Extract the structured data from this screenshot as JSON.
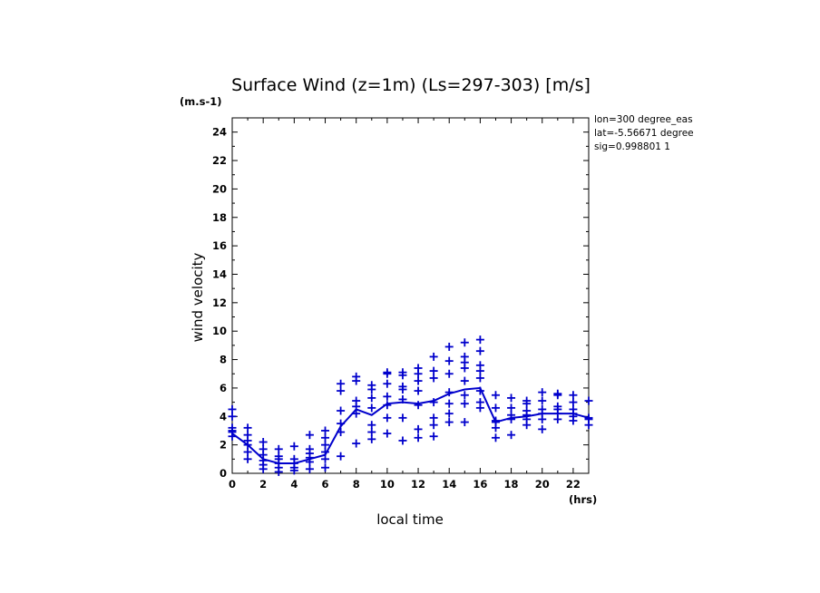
{
  "chart_data": {
    "type": "line",
    "title": "Surface Wind (z=1m) (Ls=297-303) [m/s]",
    "ylabel": "wind velocity",
    "yunit": "(m.s-1)",
    "xlabel": "local time",
    "xunit": "(hrs)",
    "xlim": [
      0,
      23
    ],
    "ylim": [
      0,
      25
    ],
    "xticks": [
      0,
      2,
      4,
      6,
      8,
      10,
      12,
      14,
      16,
      18,
      20,
      22
    ],
    "yticks": [
      0,
      2,
      4,
      6,
      8,
      10,
      12,
      14,
      16,
      18,
      20,
      22,
      24
    ],
    "annotations": [
      "lon=300 degree_eas",
      "lat=-5.56671 degree",
      "sig=0.998801 1"
    ],
    "mean_line": {
      "name": "mean",
      "x": [
        0,
        1,
        2,
        3,
        4,
        5,
        6,
        7,
        8,
        9,
        10,
        11,
        12,
        13,
        14,
        15,
        16,
        17,
        18,
        19,
        20,
        21,
        22,
        23
      ],
      "y": [
        2.8,
        2.0,
        1.0,
        0.7,
        0.7,
        1.0,
        1.3,
        3.3,
        4.5,
        4.1,
        4.9,
        5.0,
        4.9,
        5.1,
        5.6,
        5.9,
        6.0,
        3.6,
        3.9,
        4.0,
        4.2,
        4.2,
        4.2,
        3.9
      ]
    },
    "scatter": {
      "name": "samples",
      "points": [
        [
          0,
          2.6
        ],
        [
          0,
          3.0
        ],
        [
          0,
          3.2
        ],
        [
          0,
          4.0
        ],
        [
          0,
          4.5
        ],
        [
          0,
          2.9
        ],
        [
          1,
          1.0
        ],
        [
          1,
          1.5
        ],
        [
          1,
          2.0
        ],
        [
          1,
          2.3
        ],
        [
          1,
          2.7
        ],
        [
          1,
          3.2
        ],
        [
          2,
          0.3
        ],
        [
          2,
          0.6
        ],
        [
          2,
          0.9
        ],
        [
          2,
          1.3
        ],
        [
          2,
          1.7
        ],
        [
          2,
          2.2
        ],
        [
          3,
          0.1
        ],
        [
          3,
          0.4
        ],
        [
          3,
          0.7
        ],
        [
          3,
          1.0
        ],
        [
          3,
          1.2
        ],
        [
          3,
          1.7
        ],
        [
          4,
          0.2
        ],
        [
          4,
          0.4
        ],
        [
          4,
          0.7
        ],
        [
          4,
          1.0
        ],
        [
          4,
          1.9
        ],
        [
          5,
          0.3
        ],
        [
          5,
          0.8
        ],
        [
          5,
          1.1
        ],
        [
          5,
          1.4
        ],
        [
          5,
          1.7
        ],
        [
          5,
          2.7
        ],
        [
          6,
          0.4
        ],
        [
          6,
          1.0
        ],
        [
          6,
          1.5
        ],
        [
          6,
          2.0
        ],
        [
          6,
          2.5
        ],
        [
          6,
          3.0
        ],
        [
          7,
          1.2
        ],
        [
          7,
          2.9
        ],
        [
          7,
          3.5
        ],
        [
          7,
          4.4
        ],
        [
          7,
          5.8
        ],
        [
          7,
          6.3
        ],
        [
          8,
          2.1
        ],
        [
          8,
          4.2
        ],
        [
          8,
          4.7
        ],
        [
          8,
          5.1
        ],
        [
          8,
          6.5
        ],
        [
          8,
          6.8
        ],
        [
          9,
          2.4
        ],
        [
          9,
          2.9
        ],
        [
          9,
          3.4
        ],
        [
          9,
          4.6
        ],
        [
          9,
          5.3
        ],
        [
          9,
          5.9
        ],
        [
          9,
          6.2
        ],
        [
          10,
          2.8
        ],
        [
          10,
          3.9
        ],
        [
          10,
          4.8
        ],
        [
          10,
          5.4
        ],
        [
          10,
          6.3
        ],
        [
          10,
          7.0
        ],
        [
          10,
          7.1
        ],
        [
          11,
          2.3
        ],
        [
          11,
          3.9
        ],
        [
          11,
          5.2
        ],
        [
          11,
          5.9
        ],
        [
          11,
          6.1
        ],
        [
          11,
          6.9
        ],
        [
          11,
          7.1
        ],
        [
          12,
          2.5
        ],
        [
          12,
          3.1
        ],
        [
          12,
          4.8
        ],
        [
          12,
          5.8
        ],
        [
          12,
          6.5
        ],
        [
          12,
          7.0
        ],
        [
          12,
          7.4
        ],
        [
          13,
          2.6
        ],
        [
          13,
          3.4
        ],
        [
          13,
          3.9
        ],
        [
          13,
          5.0
        ],
        [
          13,
          6.7
        ],
        [
          13,
          7.2
        ],
        [
          13,
          8.2
        ],
        [
          14,
          3.6
        ],
        [
          14,
          4.2
        ],
        [
          14,
          4.9
        ],
        [
          14,
          5.7
        ],
        [
          14,
          7.0
        ],
        [
          14,
          7.9
        ],
        [
          14,
          8.9
        ],
        [
          15,
          3.6
        ],
        [
          15,
          4.9
        ],
        [
          15,
          5.5
        ],
        [
          15,
          6.5
        ],
        [
          15,
          7.4
        ],
        [
          15,
          7.8
        ],
        [
          15,
          8.2
        ],
        [
          15,
          9.2
        ],
        [
          16,
          4.6
        ],
        [
          16,
          5.0
        ],
        [
          16,
          5.8
        ],
        [
          16,
          6.7
        ],
        [
          16,
          7.2
        ],
        [
          16,
          7.6
        ],
        [
          16,
          8.6
        ],
        [
          16,
          9.4
        ],
        [
          17,
          2.5
        ],
        [
          17,
          3.2
        ],
        [
          17,
          3.6
        ],
        [
          17,
          3.7
        ],
        [
          17,
          4.6
        ],
        [
          17,
          5.5
        ],
        [
          18,
          2.7
        ],
        [
          18,
          3.8
        ],
        [
          18,
          4.1
        ],
        [
          18,
          4.6
        ],
        [
          18,
          5.3
        ],
        [
          19,
          3.4
        ],
        [
          19,
          3.8
        ],
        [
          19,
          4.1
        ],
        [
          19,
          4.4
        ],
        [
          19,
          4.9
        ],
        [
          19,
          5.1
        ],
        [
          20,
          3.1
        ],
        [
          20,
          3.8
        ],
        [
          20,
          4.2
        ],
        [
          20,
          4.5
        ],
        [
          20,
          5.1
        ],
        [
          20,
          5.7
        ],
        [
          21,
          3.8
        ],
        [
          21,
          4.2
        ],
        [
          21,
          4.5
        ],
        [
          21,
          4.7
        ],
        [
          21,
          5.5
        ],
        [
          21,
          5.6
        ],
        [
          22,
          3.7
        ],
        [
          22,
          4.0
        ],
        [
          22,
          4.2
        ],
        [
          22,
          4.5
        ],
        [
          22,
          5.0
        ],
        [
          22,
          5.5
        ],
        [
          23,
          3.4
        ],
        [
          23,
          3.8
        ],
        [
          23,
          3.9
        ],
        [
          23,
          5.1
        ]
      ]
    },
    "series_color": "#0000cc",
    "axis_color": "#000000"
  }
}
